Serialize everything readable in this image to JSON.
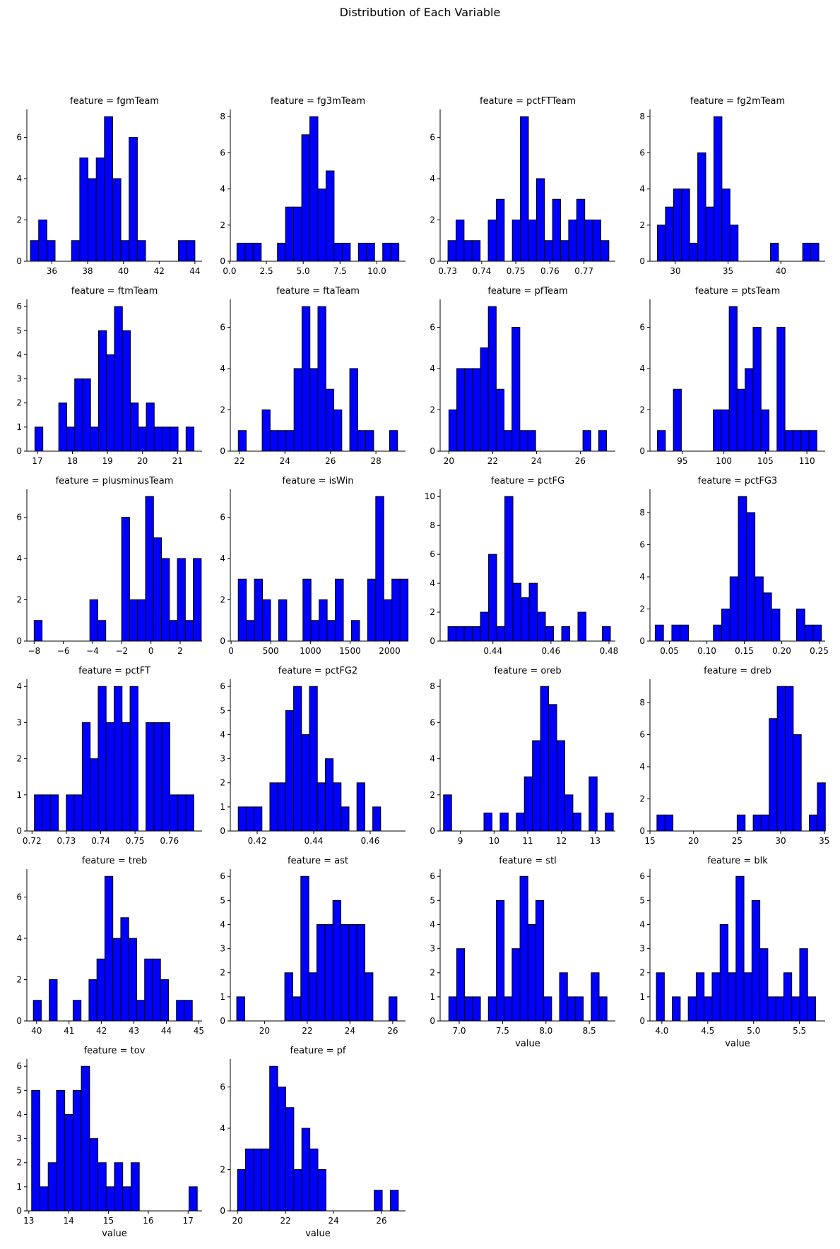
{
  "title": "Distribution of Each Variable",
  "style": {
    "bar_fill": "#0000ff",
    "bar_edge": "#000000",
    "axis_color": "#000000"
  },
  "chart_data": [
    {
      "type": "bar",
      "title": "feature = fgmTeam",
      "xlabel": "",
      "ylabel": "",
      "xlim": [
        34.6,
        44.4
      ],
      "ylim": [
        0,
        7.35
      ],
      "xticks": [
        36,
        38,
        40,
        42,
        44
      ],
      "yticks": [
        0,
        2,
        4,
        6
      ],
      "bin_start": 34.8,
      "bin_width": 0.46,
      "counts": [
        1,
        2,
        1,
        0,
        0,
        1,
        5,
        4,
        5,
        7,
        4,
        1,
        6,
        1,
        0,
        0,
        0,
        0,
        1,
        1
      ]
    },
    {
      "type": "bar",
      "title": "feature = fg3mTeam",
      "xlabel": "",
      "ylabel": "",
      "xlim": [
        0.05,
        11.95
      ],
      "ylim": [
        0,
        8.4
      ],
      "xticks": [
        0.0,
        2.5,
        5.0,
        7.5,
        10.0
      ],
      "yticks": [
        0,
        2,
        4,
        6,
        8
      ],
      "bin_start": 0.5,
      "bin_width": 0.55,
      "counts": [
        1,
        1,
        1,
        0,
        0,
        1,
        3,
        3,
        7,
        8,
        4,
        5,
        1,
        1,
        0,
        1,
        1,
        0,
        1,
        1
      ]
    },
    {
      "type": "bar",
      "title": "feature = pctFTTeam",
      "xlabel": "",
      "ylabel": "",
      "xlim": [
        0.7278,
        0.7792
      ],
      "ylim": [
        0,
        7.35
      ],
      "xticks": [
        0.73,
        0.74,
        0.75,
        0.76,
        0.77
      ],
      "yticks": [
        0,
        2,
        4,
        6
      ],
      "bin_start": 0.7301,
      "bin_width": 0.00236,
      "counts": [
        1,
        2,
        1,
        1,
        0,
        2,
        3,
        0,
        2,
        7,
        2,
        4,
        1,
        3,
        1,
        2,
        3,
        2,
        2,
        1
      ]
    },
    {
      "type": "bar",
      "title": "feature = fg2mTeam",
      "xlabel": "",
      "ylabel": "",
      "xlim": [
        27.6,
        44.2
      ],
      "ylim": [
        0,
        8.4
      ],
      "xticks": [
        30,
        35,
        40
      ],
      "yticks": [
        0,
        2,
        4,
        6,
        8
      ],
      "bin_start": 28.3,
      "bin_width": 0.765,
      "counts": [
        2,
        3,
        4,
        4,
        1,
        6,
        3,
        8,
        4,
        2,
        0,
        0,
        0,
        0,
        1,
        0,
        0,
        0,
        1,
        1
      ]
    },
    {
      "type": "bar",
      "title": "feature = ftmTeam",
      "xlabel": "",
      "ylabel": "",
      "xlim": [
        16.7,
        21.7
      ],
      "ylim": [
        0,
        6.3
      ],
      "xticks": [
        17,
        18,
        19,
        20,
        21
      ],
      "yticks": [
        0,
        1,
        2,
        3,
        4,
        5,
        6
      ],
      "bin_start": 16.93,
      "bin_width": 0.227,
      "counts": [
        1,
        0,
        0,
        2,
        1,
        3,
        3,
        1,
        5,
        4,
        6,
        5,
        2,
        1,
        2,
        1,
        1,
        1,
        0,
        1
      ]
    },
    {
      "type": "bar",
      "title": "feature = ftaTeam",
      "xlabel": "",
      "ylabel": "",
      "xlim": [
        21.6,
        29.3
      ],
      "ylim": [
        0,
        7.35
      ],
      "xticks": [
        22,
        24,
        26,
        28
      ],
      "yticks": [
        0,
        2,
        4,
        6
      ],
      "bin_start": 21.95,
      "bin_width": 0.35,
      "counts": [
        1,
        0,
        0,
        2,
        1,
        1,
        1,
        4,
        7,
        4,
        7,
        3,
        2,
        0,
        4,
        1,
        1,
        0,
        0,
        1
      ]
    },
    {
      "type": "bar",
      "title": "feature = pfTeam",
      "xlabel": "",
      "ylabel": "",
      "xlim": [
        19.6,
        27.6
      ],
      "ylim": [
        0,
        7.35
      ],
      "xticks": [
        20,
        22,
        24,
        26
      ],
      "yticks": [
        0,
        2,
        4,
        6
      ],
      "bin_start": 20.0,
      "bin_width": 0.36,
      "counts": [
        2,
        4,
        4,
        4,
        5,
        7,
        3,
        1,
        6,
        1,
        1,
        0,
        0,
        0,
        0,
        0,
        0,
        1,
        0,
        1
      ]
    },
    {
      "type": "bar",
      "title": "feature = ptsTeam",
      "xlabel": "",
      "ylabel": "",
      "xlim": [
        91.1,
        112.2
      ],
      "ylim": [
        0,
        7.35
      ],
      "xticks": [
        95,
        100,
        105,
        110
      ],
      "yticks": [
        0,
        2,
        4,
        6
      ],
      "bin_start": 92.0,
      "bin_width": 0.96,
      "counts": [
        1,
        0,
        3,
        0,
        0,
        0,
        0,
        2,
        2,
        7,
        3,
        4,
        6,
        2,
        0,
        6,
        1,
        1,
        1,
        1
      ]
    },
    {
      "type": "bar",
      "title": "feature = plusminusTeam",
      "xlabel": "",
      "ylabel": "",
      "xlim": [
        -8.5,
        3.5
      ],
      "ylim": [
        0,
        7.35
      ],
      "xticks": [
        -8,
        -6,
        -4,
        -2,
        0,
        2
      ],
      "yticks": [
        0,
        2,
        4,
        6
      ],
      "bin_start": -8.0,
      "bin_width": 0.545,
      "counts": [
        1,
        0,
        0,
        0,
        0,
        0,
        0,
        2,
        1,
        0,
        0,
        6,
        2,
        2,
        7,
        5,
        4,
        1,
        4,
        1,
        4
      ]
    },
    {
      "type": "bar",
      "title": "feature = isWin",
      "xlabel": "",
      "ylabel": "",
      "xlim": [
        -10,
        2200
      ],
      "ylim": [
        0,
        7.35
      ],
      "xticks": [
        0,
        500,
        1000,
        1500,
        2000
      ],
      "yticks": [
        0,
        2,
        4,
        6
      ],
      "bin_start": 90,
      "bin_width": 102,
      "counts": [
        3,
        1,
        3,
        2,
        0,
        2,
        0,
        0,
        3,
        1,
        2,
        1,
        3,
        0,
        1,
        0,
        3,
        7,
        2,
        3,
        3
      ]
    },
    {
      "type": "bar",
      "title": "feature = pctFG",
      "xlabel": "",
      "ylabel": "",
      "xlim": [
        0.4218,
        0.4822
      ],
      "ylim": [
        0,
        10.5
      ],
      "xticks": [
        0.44,
        0.46,
        0.48
      ],
      "yticks": [
        0,
        2,
        4,
        6,
        8,
        10
      ],
      "bin_start": 0.4245,
      "bin_width": 0.0028,
      "counts": [
        1,
        1,
        1,
        1,
        2,
        6,
        1,
        10,
        4,
        3,
        4,
        2,
        1,
        0,
        1,
        0,
        2,
        0,
        0,
        1
      ]
    },
    {
      "type": "bar",
      "title": "feature = pctFG3",
      "xlabel": "",
      "ylabel": "",
      "xlim": [
        0.024,
        0.258
      ],
      "ylim": [
        0,
        9.45
      ],
      "xticks": [
        0.05,
        0.1,
        0.15,
        0.2,
        0.25
      ],
      "yticks": [
        0,
        2,
        4,
        6,
        8
      ],
      "bin_start": 0.031,
      "bin_width": 0.0111,
      "counts": [
        1,
        0,
        1,
        1,
        0,
        0,
        0,
        1,
        2,
        4,
        9,
        8,
        4,
        3,
        2,
        0,
        0,
        2,
        1,
        1
      ]
    },
    {
      "type": "bar",
      "title": "feature = pctFT",
      "xlabel": "",
      "ylabel": "",
      "xlim": [
        0.7185,
        0.7695
      ],
      "ylim": [
        0,
        4.2
      ],
      "xticks": [
        0.72,
        0.73,
        0.74,
        0.75,
        0.76
      ],
      "yticks": [
        0,
        1,
        2,
        3,
        4
      ],
      "bin_start": 0.7207,
      "bin_width": 0.00232,
      "counts": [
        1,
        1,
        1,
        0,
        1,
        1,
        3,
        2,
        4,
        3,
        4,
        3,
        4,
        0,
        3,
        3,
        3,
        1,
        1,
        1
      ]
    },
    {
      "type": "bar",
      "title": "feature = pctFG2",
      "xlabel": "",
      "ylabel": "",
      "xlim": [
        0.4105,
        0.4725
      ],
      "ylim": [
        0,
        6.3
      ],
      "xticks": [
        0.42,
        0.44,
        0.46
      ],
      "yticks": [
        0,
        1,
        2,
        3,
        4,
        5,
        6
      ],
      "bin_start": 0.4133,
      "bin_width": 0.0028,
      "counts": [
        1,
        1,
        1,
        0,
        2,
        2,
        5,
        6,
        4,
        6,
        2,
        3,
        2,
        1,
        0,
        2,
        0,
        1
      ]
    },
    {
      "type": "bar",
      "title": "feature = oreb",
      "xlabel": "",
      "ylabel": "",
      "xlim": [
        8.4,
        13.6
      ],
      "ylim": [
        0,
        8.4
      ],
      "xticks": [
        9,
        10,
        11,
        12,
        13
      ],
      "yticks": [
        0,
        2,
        4,
        6,
        8
      ],
      "bin_start": 8.5,
      "bin_width": 0.24,
      "counts": [
        2,
        0,
        0,
        0,
        0,
        1,
        0,
        1,
        0,
        1,
        3,
        5,
        8,
        7,
        5,
        2,
        1,
        0,
        3,
        0,
        1
      ]
    },
    {
      "type": "bar",
      "title": "feature = dreb",
      "xlabel": "",
      "ylabel": "",
      "xlim": [
        15.0,
        35.1
      ],
      "ylim": [
        0,
        9.45
      ],
      "xticks": [
        15,
        20,
        25,
        30,
        35
      ],
      "yticks": [
        0,
        2,
        4,
        6,
        8
      ],
      "bin_start": 15.8,
      "bin_width": 0.92,
      "counts": [
        1,
        1,
        0,
        0,
        0,
        0,
        0,
        0,
        0,
        0,
        1,
        0,
        1,
        1,
        7,
        9,
        9,
        6,
        0,
        1,
        3
      ]
    },
    {
      "type": "bar",
      "title": "feature = treb",
      "xlabel": "",
      "ylabel": "",
      "xlim": [
        39.7,
        45.1
      ],
      "ylim": [
        0,
        7.35
      ],
      "xticks": [
        40,
        41,
        42,
        43,
        44,
        45
      ],
      "yticks": [
        0,
        2,
        4,
        6
      ],
      "bin_start": 39.9,
      "bin_width": 0.245,
      "counts": [
        1,
        0,
        2,
        0,
        0,
        1,
        0,
        2,
        3,
        7,
        4,
        5,
        4,
        1,
        3,
        3,
        2,
        0,
        1,
        1
      ]
    },
    {
      "type": "bar",
      "title": "feature = ast",
      "xlabel": "",
      "ylabel": "",
      "xlim": [
        18.4,
        26.6
      ],
      "ylim": [
        0,
        6.3
      ],
      "xticks": [
        20,
        22,
        24,
        26
      ],
      "yticks": [
        0,
        1,
        2,
        3,
        4,
        5,
        6
      ],
      "bin_start": 18.7,
      "bin_width": 0.375,
      "counts": [
        1,
        0,
        0,
        0,
        0,
        0,
        2,
        1,
        6,
        2,
        4,
        4,
        5,
        4,
        4,
        4,
        2,
        0,
        0,
        1
      ]
    },
    {
      "type": "bar",
      "title": "feature = stl",
      "xlabel": "value",
      "ylabel": "",
      "xlim": [
        6.78,
        8.8
      ],
      "ylim": [
        0,
        6.3
      ],
      "xticks": [
        7.0,
        7.5,
        8.0,
        8.5
      ],
      "yticks": [
        0,
        1,
        2,
        3,
        4,
        5,
        6
      ],
      "bin_start": 6.88,
      "bin_width": 0.0912,
      "counts": [
        1,
        3,
        1,
        1,
        0,
        1,
        5,
        1,
        3,
        6,
        4,
        5,
        1,
        0,
        2,
        1,
        1,
        0,
        2,
        1
      ]
    },
    {
      "type": "bar",
      "title": "feature = blk",
      "xlabel": "value",
      "ylabel": "",
      "xlim": [
        3.87,
        5.78
      ],
      "ylim": [
        0,
        6.3
      ],
      "xticks": [
        4.0,
        4.5,
        5.0,
        5.5
      ],
      "yticks": [
        0,
        1,
        2,
        3,
        4,
        5,
        6
      ],
      "bin_start": 3.94,
      "bin_width": 0.0868,
      "counts": [
        2,
        0,
        1,
        0,
        1,
        2,
        1,
        2,
        4,
        2,
        6,
        2,
        5,
        3,
        1,
        1,
        2,
        1,
        3,
        1
      ]
    },
    {
      "type": "bar",
      "title": "feature = tov",
      "xlabel": "value",
      "ylabel": "",
      "xlim": [
        12.95,
        17.35
      ],
      "ylim": [
        0,
        6.3
      ],
      "xticks": [
        13,
        14,
        15,
        16,
        17
      ],
      "yticks": [
        0,
        1,
        2,
        3,
        4,
        5,
        6
      ],
      "bin_start": 13.07,
      "bin_width": 0.208,
      "counts": [
        5,
        1,
        2,
        5,
        4,
        5,
        6,
        3,
        2,
        1,
        2,
        1,
        2,
        0,
        0,
        0,
        0,
        0,
        0,
        1
      ]
    },
    {
      "type": "bar",
      "title": "feature = pf",
      "xlabel": "value",
      "ylabel": "",
      "xlim": [
        19.7,
        27.0
      ],
      "ylim": [
        0,
        7.35
      ],
      "xticks": [
        20,
        22,
        24,
        26
      ],
      "yticks": [
        0,
        2,
        4,
        6
      ],
      "bin_start": 20.0,
      "bin_width": 0.335,
      "counts": [
        2,
        3,
        3,
        3,
        7,
        6,
        5,
        2,
        4,
        3,
        2,
        0,
        0,
        0,
        0,
        0,
        0,
        1,
        0,
        1
      ]
    }
  ]
}
